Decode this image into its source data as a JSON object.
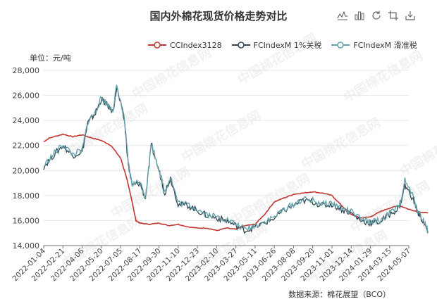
{
  "title": "国内外棉花现货价格走势对比",
  "unit_label": "单位：元/吨",
  "source_label": "数据来源：棉花展望（BCO）",
  "watermark": "中国棉花信息网",
  "toolbox": [
    "line-chart-icon",
    "bar-chart-icon",
    "restore-icon",
    "crop-icon",
    "download-icon"
  ],
  "chart_data": {
    "type": "line",
    "ylim": [
      14000,
      28000
    ],
    "yticks": [
      "14,000",
      "16,000",
      "18,000",
      "20,000",
      "22,000",
      "24,000",
      "26,000",
      "28,000"
    ],
    "xticks": [
      "2022-01-04",
      "2022-02-21",
      "2022-04-06",
      "2022-05-20",
      "2022-07-05",
      "2022-08-17",
      "2022-09-30",
      "2022-11-10",
      "2022-12-23",
      "2023-02-10",
      "2023-03-27",
      "2023-05-11",
      "2023-06-26",
      "2023-08-08",
      "2023-09-20",
      "2023-11-01",
      "2023-12-14",
      "2024-01-29",
      "2024-03-15",
      "2024-05-07"
    ],
    "grid": true,
    "legend_position": "top",
    "series": [
      {
        "name": "CCIndex3128",
        "color": "#c23531",
        "points": [
          [
            0,
            22300
          ],
          [
            0.3,
            22600
          ],
          [
            1,
            22900
          ],
          [
            1.5,
            22700
          ],
          [
            2,
            22850
          ],
          [
            2.5,
            22600
          ],
          [
            3,
            22400
          ],
          [
            3.5,
            22000
          ],
          [
            4,
            21000
          ],
          [
            4.3,
            19500
          ],
          [
            4.6,
            17500
          ],
          [
            4.8,
            16000
          ],
          [
            5,
            15800
          ],
          [
            5.5,
            15700
          ],
          [
            6,
            15800
          ],
          [
            6.5,
            15600
          ],
          [
            7,
            15700
          ],
          [
            7.5,
            15500
          ],
          [
            8,
            15400
          ],
          [
            8.5,
            15400
          ],
          [
            9,
            15200
          ],
          [
            9.5,
            15400
          ],
          [
            10,
            15300
          ],
          [
            10.5,
            15600
          ],
          [
            11,
            15700
          ],
          [
            11.5,
            16500
          ],
          [
            12,
            17500
          ],
          [
            12.5,
            17800
          ],
          [
            13,
            18100
          ],
          [
            13.5,
            18200
          ],
          [
            14,
            18300
          ],
          [
            14.5,
            18200
          ],
          [
            15,
            18000
          ],
          [
            15.5,
            17200
          ],
          [
            16,
            16500
          ],
          [
            16.5,
            16200
          ],
          [
            17,
            16300
          ],
          [
            17.5,
            16700
          ],
          [
            18,
            17000
          ],
          [
            18.5,
            17200
          ],
          [
            19,
            16900
          ],
          [
            19.5,
            16700
          ],
          [
            20,
            16600
          ]
        ]
      },
      {
        "name": "FCIndexM 1%关税",
        "color": "#2f4554",
        "points": [
          [
            0,
            20300
          ],
          [
            0.5,
            21200
          ],
          [
            1,
            22000
          ],
          [
            1.5,
            21200
          ],
          [
            2,
            21500
          ],
          [
            2.3,
            23800
          ],
          [
            2.7,
            24600
          ],
          [
            3,
            25700
          ],
          [
            3.3,
            25200
          ],
          [
            3.6,
            24700
          ],
          [
            3.8,
            26600
          ],
          [
            4.2,
            24000
          ],
          [
            4.4,
            20500
          ],
          [
            4.6,
            18800
          ],
          [
            5,
            19000
          ],
          [
            5.3,
            17800
          ],
          [
            5.6,
            22000
          ],
          [
            6,
            20000
          ],
          [
            6.3,
            18200
          ],
          [
            6.6,
            19400
          ],
          [
            7,
            17300
          ],
          [
            7.5,
            17200
          ],
          [
            8,
            16800
          ],
          [
            8.5,
            16400
          ],
          [
            9,
            16200
          ],
          [
            9.5,
            16000
          ],
          [
            10,
            15600
          ],
          [
            10.5,
            15200
          ],
          [
            11,
            15500
          ],
          [
            11.5,
            15800
          ],
          [
            12,
            16200
          ],
          [
            12.5,
            16800
          ],
          [
            13,
            17200
          ],
          [
            13.5,
            17600
          ],
          [
            14,
            17500
          ],
          [
            14.5,
            17200
          ],
          [
            15,
            17300
          ],
          [
            15.5,
            16900
          ],
          [
            16,
            16600
          ],
          [
            16.5,
            16000
          ],
          [
            17,
            15800
          ],
          [
            17.5,
            15900
          ],
          [
            18,
            16500
          ],
          [
            18.5,
            17000
          ],
          [
            18.8,
            18800
          ],
          [
            19.2,
            17800
          ],
          [
            19.5,
            16500
          ],
          [
            19.8,
            15800
          ],
          [
            20,
            15000
          ]
        ]
      },
      {
        "name": "FCIndexM 滑准税",
        "color": "#61a0a8",
        "points": [
          [
            0,
            20350
          ],
          [
            0.5,
            21300
          ],
          [
            1,
            22100
          ],
          [
            1.5,
            21300
          ],
          [
            2,
            21600
          ],
          [
            2.3,
            23900
          ],
          [
            2.7,
            24700
          ],
          [
            3,
            25800
          ],
          [
            3.3,
            25300
          ],
          [
            3.6,
            24800
          ],
          [
            3.8,
            26800
          ],
          [
            4.2,
            24100
          ],
          [
            4.4,
            20600
          ],
          [
            4.6,
            18900
          ],
          [
            5,
            19100
          ],
          [
            5.3,
            17900
          ],
          [
            5.6,
            22200
          ],
          [
            6,
            20100
          ],
          [
            6.3,
            18300
          ],
          [
            6.6,
            19500
          ],
          [
            7,
            17400
          ],
          [
            7.5,
            17300
          ],
          [
            8,
            16900
          ],
          [
            8.5,
            16500
          ],
          [
            9,
            16300
          ],
          [
            9.5,
            16100
          ],
          [
            10,
            15700
          ],
          [
            10.5,
            15300
          ],
          [
            11,
            15600
          ],
          [
            11.5,
            15900
          ],
          [
            12,
            16300
          ],
          [
            12.5,
            16900
          ],
          [
            13,
            17300
          ],
          [
            13.5,
            17700
          ],
          [
            14,
            17600
          ],
          [
            14.5,
            17300
          ],
          [
            15,
            17400
          ],
          [
            15.5,
            17000
          ],
          [
            16,
            16700
          ],
          [
            16.5,
            16100
          ],
          [
            17,
            15900
          ],
          [
            17.5,
            16000
          ],
          [
            18,
            16600
          ],
          [
            18.5,
            17100
          ],
          [
            18.8,
            19200
          ],
          [
            19.2,
            18000
          ],
          [
            19.5,
            16700
          ],
          [
            19.8,
            15900
          ],
          [
            20,
            15200
          ]
        ]
      }
    ]
  }
}
